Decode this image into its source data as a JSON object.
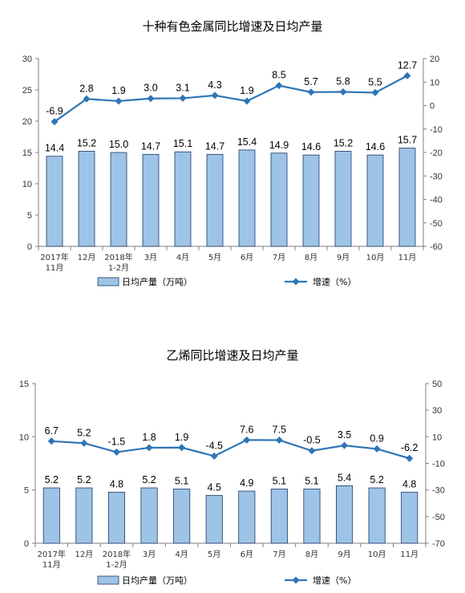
{
  "chart_data": [
    {
      "type": "bar",
      "title": "十种有色金属同比增速及日均产量",
      "categories": [
        [
          "2017年",
          "11月"
        ],
        [
          "12月"
        ],
        [
          "2018年",
          "1-2月"
        ],
        [
          "3月"
        ],
        [
          "4月"
        ],
        [
          "5月"
        ],
        [
          "6月"
        ],
        [
          "7月"
        ],
        [
          "8月"
        ],
        [
          "9月"
        ],
        [
          "10月"
        ],
        [
          "11月"
        ]
      ],
      "series": [
        {
          "name": "日均产量（万吨）",
          "type": "bar",
          "axis": "left",
          "values": [
            14.4,
            15.2,
            15.0,
            14.7,
            15.1,
            14.7,
            15.4,
            14.9,
            14.6,
            15.2,
            14.6,
            15.7
          ],
          "labels": [
            "14.4",
            "15.2",
            "15.0",
            "14.7",
            "15.1",
            "14.7",
            "15.4",
            "14.9",
            "14.6",
            "15.2",
            "14.6",
            "15.7"
          ]
        },
        {
          "name": "增速（%）",
          "type": "line",
          "axis": "right",
          "values": [
            -6.9,
            2.8,
            1.9,
            3.0,
            3.1,
            4.3,
            1.9,
            8.5,
            5.7,
            5.8,
            5.5,
            12.7
          ],
          "labels": [
            "-6.9",
            "2.8",
            "1.9",
            "3.0",
            "3.1",
            "4.3",
            "1.9",
            "8.5",
            "5.7",
            "5.8",
            "5.5",
            "12.7"
          ]
        }
      ],
      "ylim_left": [
        0,
        30
      ],
      "yticks_left": [
        "0",
        "5",
        "10",
        "15",
        "20",
        "25",
        "30"
      ],
      "ylim_right": [
        -60,
        20
      ],
      "yticks_right": [
        "-60",
        "-50",
        "-40",
        "-30",
        "-20",
        "-10",
        "0",
        "10",
        "20"
      ],
      "legend": "bottom",
      "grid": false
    },
    {
      "type": "bar",
      "title": "乙烯同比增速及日均产量",
      "categories": [
        [
          "2017年",
          "11月"
        ],
        [
          "12月"
        ],
        [
          "2018年",
          "1-2月"
        ],
        [
          "3月"
        ],
        [
          "4月"
        ],
        [
          "5月"
        ],
        [
          "6月"
        ],
        [
          "7月"
        ],
        [
          "8月"
        ],
        [
          "9月"
        ],
        [
          "10月"
        ],
        [
          "11月"
        ]
      ],
      "series": [
        {
          "name": "日均产量（万吨）",
          "type": "bar",
          "axis": "left",
          "values": [
            5.2,
            5.2,
            4.8,
            5.2,
            5.1,
            4.5,
            4.9,
            5.1,
            5.1,
            5.4,
            5.2,
            4.8
          ],
          "labels": [
            "5.2",
            "5.2",
            "4.8",
            "5.2",
            "5.1",
            "4.5",
            "4.9",
            "5.1",
            "5.1",
            "5.4",
            "5.2",
            "4.8"
          ]
        },
        {
          "name": "增速（%）",
          "type": "line",
          "axis": "right",
          "values": [
            6.7,
            5.2,
            -1.5,
            1.8,
            1.9,
            -4.5,
            7.6,
            7.5,
            -0.5,
            3.5,
            0.9,
            -6.2
          ],
          "labels": [
            "6.7",
            "5.2",
            "-1.5",
            "1.8",
            "1.9",
            "-4.5",
            "7.6",
            "7.5",
            "-0.5",
            "3.5",
            "0.9",
            "-6.2"
          ]
        }
      ],
      "ylim_left": [
        0,
        15
      ],
      "yticks_left": [
        "0",
        "5",
        "10",
        "15"
      ],
      "ylim_right": [
        -70,
        50
      ],
      "yticks_right": [
        "-70",
        "-50",
        "-30",
        "-10",
        "10",
        "30",
        "50"
      ],
      "legend": "bottom",
      "grid": false
    }
  ],
  "colors": {
    "bar_fill": "#9DC3E6",
    "bar_stroke": "#1F3864",
    "line": "#2E75B6",
    "axis": "#7F7F7F"
  }
}
